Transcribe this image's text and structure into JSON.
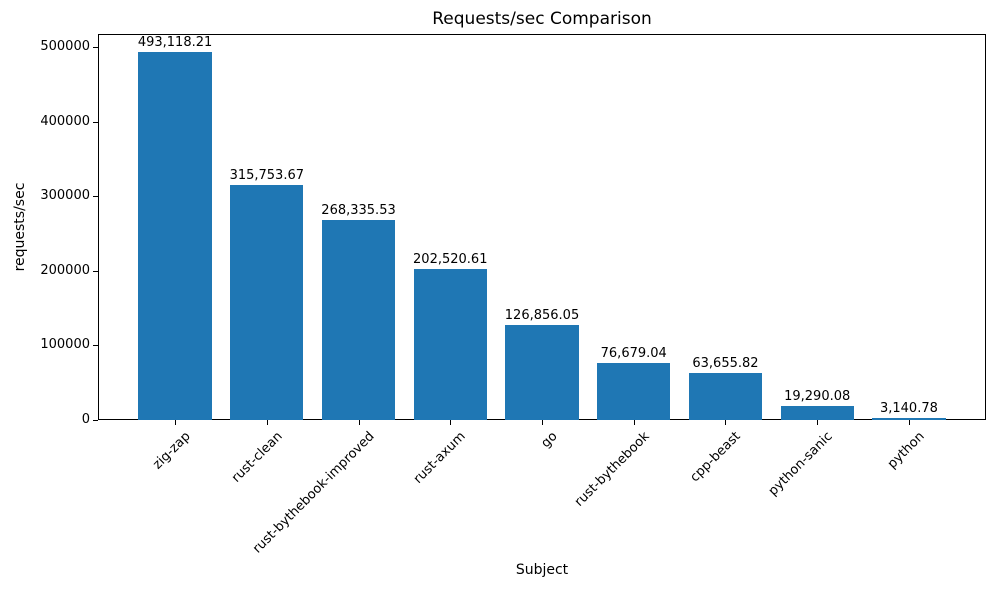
{
  "chart_data": {
    "type": "bar",
    "title": "Requests/sec Comparison",
    "xlabel": "Subject",
    "ylabel": "requests/sec",
    "categories": [
      "zig-zap",
      "rust-clean",
      "rust-bythebook-improved",
      "rust-axum",
      "go",
      "rust-bythebook",
      "cpp-beast",
      "python-sanic",
      "python"
    ],
    "values": [
      493118.21,
      315753.67,
      268335.53,
      202520.61,
      126856.05,
      76679.04,
      63655.82,
      19290.08,
      3140.78
    ],
    "value_labels": [
      "493,118.21",
      "315,753.67",
      "268,335.53",
      "202,520.61",
      "126,856.05",
      "76,679.04",
      "63,655.82",
      "19,290.08",
      "3,140.78"
    ],
    "y_ticks": [
      0,
      100000,
      200000,
      300000,
      400000,
      500000
    ],
    "y_tick_labels": [
      "0",
      "100000",
      "200000",
      "300000",
      "400000",
      "500000"
    ],
    "ylim": [
      0,
      517774
    ],
    "bar_color": "#1f77b4",
    "grid": false,
    "legend": "none"
  }
}
